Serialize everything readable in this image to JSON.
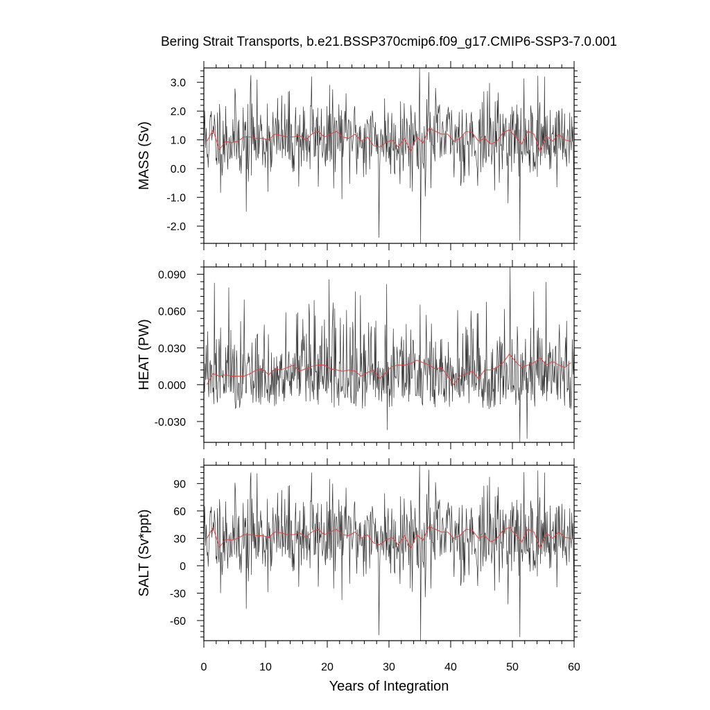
{
  "figure": {
    "title": "Bering Strait Transports, b.e21.BSSP370cmip6.f09_g17.CMIP6-SSP3-7.0.001",
    "xlabel": "Years of Integration"
  },
  "chart_data": [
    {
      "type": "line",
      "ylabel": "MASS (Sv)",
      "xlim": [
        0,
        60
      ],
      "ylim": [
        -2.6,
        3.5
      ],
      "xticks": [
        0,
        10,
        20,
        30,
        40,
        50,
        60
      ],
      "yticks": [
        -2.0,
        -1.0,
        0.0,
        1.0,
        2.0,
        3.0
      ],
      "ytick_labels": [
        "-2.0",
        "-1.0",
        "0.0",
        "1.0",
        "2.0",
        "3.0"
      ],
      "show_xtick_labels": false,
      "series": [
        {
          "kind": "monthly",
          "color": "#333333",
          "seed": 11,
          "mean": 1.05,
          "sd": 0.75,
          "spikes": [
            [
              7.6,
              3.25
            ],
            [
              6.8,
              -1.5
            ],
            [
              28.3,
              -2.4
            ],
            [
              35.1,
              -2.6
            ],
            [
              34.9,
              3.5
            ],
            [
              36.4,
              3.35
            ],
            [
              51.2,
              -2.5
            ],
            [
              55.2,
              3.2
            ],
            [
              17.4,
              3.2
            ]
          ]
        },
        {
          "kind": "annual",
          "color": "#e8403a",
          "x": [
            0.5,
            1.5,
            2.5,
            3.5,
            4.5,
            5.5,
            6.5,
            7.5,
            8.5,
            9.5,
            10.5,
            11.5,
            12.5,
            13.5,
            14.5,
            15.5,
            16.5,
            17.5,
            18.5,
            19.5,
            20.5,
            21.5,
            22.5,
            23.5,
            24.5,
            25.5,
            26.5,
            27.5,
            28.5,
            29.5,
            30.5,
            31.5,
            32.5,
            33.5,
            34.5,
            35.5,
            36.5,
            37.5,
            38.5,
            39.5,
            40.5,
            41.5,
            42.5,
            43.5,
            44.5,
            45.5,
            46.5,
            47.5,
            48.5,
            49.5,
            50.5,
            51.5,
            52.5,
            53.5,
            54.5,
            55.5,
            56.5,
            57.5,
            58.5,
            59.5
          ],
          "y": [
            0.95,
            1.35,
            0.65,
            0.95,
            0.9,
            0.95,
            1.1,
            1.1,
            1.05,
            1.05,
            1.0,
            1.2,
            1.15,
            1.1,
            1.1,
            1.15,
            1.0,
            1.2,
            1.3,
            1.1,
            1.2,
            1.3,
            1.1,
            1.05,
            1.2,
            0.95,
            1.1,
            0.8,
            0.75,
            0.9,
            1.0,
            0.75,
            1.05,
            0.6,
            1.1,
            0.9,
            1.4,
            1.3,
            1.2,
            1.2,
            0.95,
            1.05,
            1.3,
            1.25,
            0.95,
            1.05,
            0.85,
            0.95,
            1.25,
            1.35,
            1.1,
            0.85,
            1.3,
            1.2,
            0.6,
            1.15,
            0.95,
            1.2,
            1.0,
            0.95
          ]
        }
      ]
    },
    {
      "type": "line",
      "ylabel": "HEAT (PW)",
      "xlim": [
        0,
        60
      ],
      "ylim": [
        -0.047,
        0.096
      ],
      "xticks": [
        0,
        10,
        20,
        30,
        40,
        50,
        60
      ],
      "yticks": [
        -0.03,
        0.0,
        0.03,
        0.06,
        0.09
      ],
      "ytick_labels": [
        "-0.030",
        "0.000",
        "0.030",
        "0.060",
        "0.090"
      ],
      "show_xtick_labels": false,
      "series": [
        {
          "kind": "monthly",
          "color": "#333333",
          "seed": 27,
          "mean": 0.01,
          "sd": 0.019,
          "skew": 0.6,
          "spikes": [
            [
              29.6,
              0.082
            ],
            [
              29.7,
              -0.037
            ],
            [
              49.6,
              0.096
            ],
            [
              51.2,
              -0.047
            ],
            [
              52.3,
              -0.044
            ],
            [
              53.4,
              0.076
            ],
            [
              25.3,
              0.073
            ],
            [
              17.8,
              0.069
            ]
          ]
        },
        {
          "kind": "annual",
          "color": "#e8403a",
          "x": [
            0.5,
            1.5,
            2.5,
            3.5,
            4.5,
            5.5,
            6.5,
            7.5,
            8.5,
            9.5,
            10.5,
            11.5,
            12.5,
            13.5,
            14.5,
            15.5,
            16.5,
            17.5,
            18.5,
            19.5,
            20.5,
            21.5,
            22.5,
            23.5,
            24.5,
            25.5,
            26.5,
            27.5,
            28.5,
            29.5,
            30.5,
            31.5,
            32.5,
            33.5,
            34.5,
            35.5,
            36.5,
            37.5,
            38.5,
            39.5,
            40.5,
            41.5,
            42.5,
            43.5,
            44.5,
            45.5,
            46.5,
            47.5,
            48.5,
            49.5,
            50.5,
            51.5,
            52.5,
            53.5,
            54.5,
            55.5,
            56.5,
            57.5,
            58.5,
            59.5
          ],
          "y": [
            0.0,
            0.009,
            0.007,
            0.008,
            0.007,
            0.007,
            0.007,
            0.009,
            0.012,
            0.013,
            0.008,
            0.013,
            0.012,
            0.014,
            0.016,
            0.011,
            0.013,
            0.015,
            0.016,
            0.016,
            0.013,
            0.012,
            0.011,
            0.012,
            0.011,
            0.007,
            0.01,
            0.012,
            0.005,
            0.01,
            0.015,
            0.016,
            0.016,
            0.017,
            0.02,
            0.018,
            0.016,
            0.013,
            0.014,
            0.007,
            0.0,
            0.007,
            0.009,
            0.011,
            0.005,
            0.012,
            0.012,
            0.014,
            0.018,
            0.025,
            0.019,
            0.014,
            0.016,
            0.018,
            0.022,
            0.016,
            0.019,
            0.016,
            0.014,
            0.018
          ]
        }
      ]
    },
    {
      "type": "line",
      "ylabel": "SALT (Sv*ppt)",
      "xlim": [
        0,
        60
      ],
      "ylim": [
        -82,
        110
      ],
      "xticks": [
        0,
        10,
        20,
        30,
        40,
        50,
        60
      ],
      "yticks": [
        -60,
        -30,
        0,
        30,
        60,
        90
      ],
      "ytick_labels": [
        "-60",
        "-30",
        "0",
        "30",
        "60",
        "90"
      ],
      "show_xtick_labels": true,
      "series": [
        {
          "kind": "monthly",
          "color": "#333333",
          "seed": 11,
          "mean": 33,
          "sd": 25,
          "spikes": [
            [
              7.6,
              102
            ],
            [
              6.8,
              -47
            ],
            [
              28.3,
              -76
            ],
            [
              35.1,
              -82
            ],
            [
              34.9,
              110
            ],
            [
              36.4,
              105
            ],
            [
              51.2,
              -78
            ],
            [
              55.2,
              102
            ],
            [
              17.4,
              102
            ]
          ]
        },
        {
          "kind": "annual",
          "color": "#e8403a",
          "x": [
            0.5,
            1.5,
            2.5,
            3.5,
            4.5,
            5.5,
            6.5,
            7.5,
            8.5,
            9.5,
            10.5,
            11.5,
            12.5,
            13.5,
            14.5,
            15.5,
            16.5,
            17.5,
            18.5,
            19.5,
            20.5,
            21.5,
            22.5,
            23.5,
            24.5,
            25.5,
            26.5,
            27.5,
            28.5,
            29.5,
            30.5,
            31.5,
            32.5,
            33.5,
            34.5,
            35.5,
            36.5,
            37.5,
            38.5,
            39.5,
            40.5,
            41.5,
            42.5,
            43.5,
            44.5,
            45.5,
            46.5,
            47.5,
            48.5,
            49.5,
            50.5,
            51.5,
            52.5,
            53.5,
            54.5,
            55.5,
            56.5,
            57.5,
            58.5,
            59.5
          ],
          "y": [
            30,
            42,
            20,
            29,
            28,
            30,
            34,
            34,
            33,
            33,
            31,
            37,
            36,
            34,
            34,
            36,
            31,
            37,
            40,
            34,
            37,
            40,
            34,
            33,
            37,
            30,
            34,
            25,
            23,
            28,
            31,
            23,
            33,
            19,
            34,
            28,
            43,
            40,
            37,
            37,
            30,
            33,
            40,
            39,
            30,
            33,
            26,
            30,
            39,
            42,
            34,
            26,
            40,
            37,
            19,
            36,
            30,
            37,
            31,
            30
          ]
        }
      ]
    }
  ]
}
